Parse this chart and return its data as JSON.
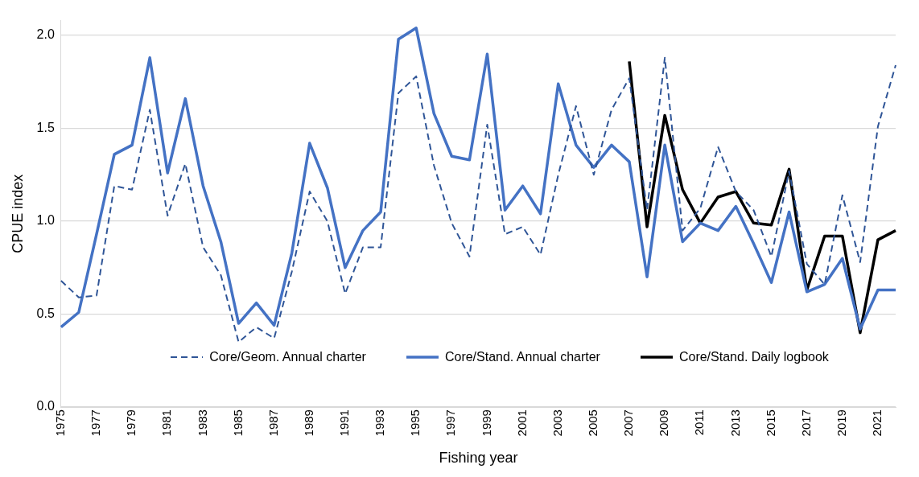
{
  "chart_data": {
    "type": "line",
    "xlabel": "Fishing year",
    "ylabel": "CPUE index",
    "categories": [
      "1975",
      null,
      "1977",
      null,
      "1979",
      null,
      "1981",
      null,
      "1983",
      null,
      "1985",
      null,
      "1987",
      null,
      "1989",
      null,
      "1991",
      null,
      "1993",
      null,
      "1995",
      null,
      "1997",
      null,
      "1999",
      null,
      "2001",
      null,
      "2003",
      null,
      "2005",
      null,
      "2007",
      null,
      "2009",
      null,
      "2011",
      null,
      "2013",
      null,
      "2015",
      null,
      "2017",
      null,
      "2019",
      null,
      "2021",
      null
    ],
    "series": [
      {
        "name": "Core/Geom. Annual charter",
        "color": "#2f5597",
        "line_style": "dashed",
        "values": [
          0.68,
          0.59,
          0.6,
          1.19,
          1.17,
          1.6,
          1.03,
          1.31,
          0.86,
          0.71,
          0.35,
          0.43,
          0.37,
          0.73,
          1.16,
          1.0,
          0.61,
          0.86,
          0.86,
          1.69,
          1.78,
          1.3,
          0.99,
          0.81,
          1.52,
          0.93,
          0.97,
          0.82,
          1.25,
          1.62,
          1.25,
          1.6,
          1.77,
          1.06,
          1.88,
          0.95,
          1.07,
          1.4,
          1.16,
          1.06,
          0.81,
          1.27,
          0.77,
          0.66,
          1.14,
          0.78,
          1.51,
          1.84
        ]
      },
      {
        "name": "Core/Stand. Annual charter",
        "color": "#4472c4",
        "line_style": "solid",
        "values": [
          0.43,
          0.51,
          0.93,
          1.36,
          1.41,
          1.88,
          1.26,
          1.66,
          1.19,
          0.89,
          0.45,
          0.56,
          0.44,
          0.83,
          1.42,
          1.18,
          0.75,
          0.95,
          1.05,
          1.98,
          2.04,
          1.58,
          1.35,
          1.33,
          1.9,
          1.06,
          1.19,
          1.04,
          1.74,
          1.41,
          1.29,
          1.41,
          1.32,
          0.7,
          1.41,
          0.89,
          0.99,
          0.95,
          1.08,
          0.88,
          0.67,
          1.05,
          0.62,
          0.66,
          0.8,
          0.42,
          0.63,
          0.63
        ]
      },
      {
        "name": "Core/Stand. Daily logbook",
        "color": "#000000",
        "line_style": "solid",
        "values": [
          null,
          null,
          null,
          null,
          null,
          null,
          null,
          null,
          null,
          null,
          null,
          null,
          null,
          null,
          null,
          null,
          null,
          null,
          null,
          null,
          null,
          null,
          null,
          null,
          null,
          null,
          null,
          null,
          null,
          null,
          null,
          null,
          1.86,
          0.97,
          1.57,
          1.17,
          0.99,
          1.13,
          1.16,
          0.99,
          0.98,
          1.28,
          0.63,
          0.92,
          0.92,
          0.4,
          0.9,
          0.95
        ]
      }
    ],
    "ylim": [
      0,
      2.08
    ],
    "yticks": [
      {
        "value": 0,
        "label": "0.0"
      },
      {
        "value": 0.5,
        "label": "0.5"
      },
      {
        "value": 1,
        "label": "1.0"
      },
      {
        "value": 1.5,
        "label": "1.5"
      },
      {
        "value": 2,
        "label": "2.0"
      }
    ],
    "grid": "y",
    "legend": "bottom",
    "marker": "none"
  }
}
